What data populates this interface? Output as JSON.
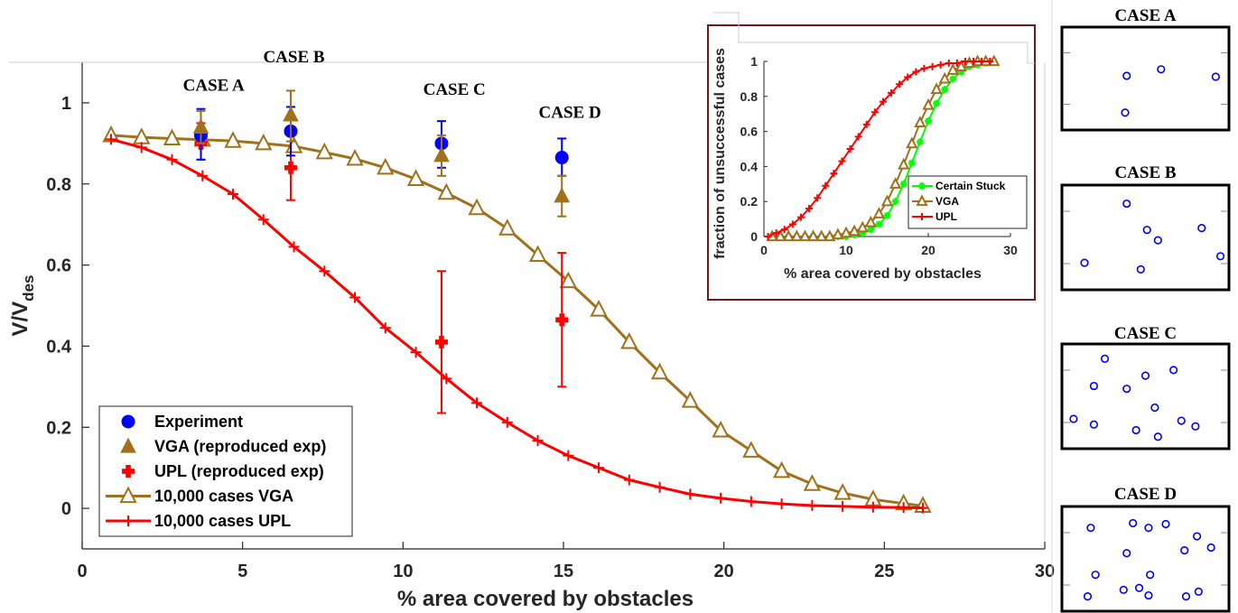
{
  "colors": {
    "experiment": "#0000ff",
    "vga": "#a0701a",
    "upl": "#ff0000",
    "certain_stuck": "#00ff00",
    "inset_frame": "#6b1b1b",
    "axis": "#262626"
  },
  "chart_data": [
    {
      "type": "line",
      "xlabel": "% area covered by obstacles",
      "ylabel": "V/V",
      "ylabel_sub": "des",
      "xlim": [
        0,
        30
      ],
      "ylim": [
        -0.1,
        1.1
      ],
      "xticks": [
        0,
        5,
        10,
        15,
        20,
        25,
        30
      ],
      "yticks": [
        0,
        0.2,
        0.4,
        0.6,
        0.8,
        1
      ],
      "xtick_labels": [
        "0",
        "5",
        "10",
        "15",
        "20",
        "25",
        "30"
      ],
      "ytick_labels": [
        "0",
        "0.2",
        "0.4",
        "0.6",
        "0.8",
        "1"
      ],
      "legend_position": "bottom-left",
      "x": [
        0.9,
        1.85,
        2.8,
        3.75,
        4.7,
        5.65,
        6.6,
        7.55,
        8.5,
        9.45,
        10.4,
        11.35,
        12.3,
        13.25,
        14.2,
        15.15,
        16.1,
        17.05,
        18.0,
        18.95,
        19.9,
        20.85,
        21.8,
        22.75,
        23.7,
        24.65,
        25.6,
        26.2
      ],
      "series": [
        {
          "name": "10,000 cases VGA",
          "key": "vga_line",
          "values": [
            0.92,
            0.915,
            0.912,
            0.909,
            0.906,
            0.9,
            0.893,
            0.878,
            0.862,
            0.84,
            0.812,
            0.778,
            0.74,
            0.69,
            0.625,
            0.56,
            0.49,
            0.41,
            0.335,
            0.265,
            0.192,
            0.142,
            0.092,
            0.06,
            0.038,
            0.022,
            0.012,
            0.006
          ]
        },
        {
          "name": "10,000 cases UPL",
          "key": "upl_line",
          "values": [
            0.91,
            0.89,
            0.86,
            0.82,
            0.775,
            0.712,
            0.645,
            0.585,
            0.52,
            0.445,
            0.385,
            0.32,
            0.26,
            0.212,
            0.167,
            0.13,
            0.1,
            0.07,
            0.052,
            0.035,
            0.025,
            0.017,
            0.011,
            0.007,
            0.005,
            0.003,
            0.002,
            0.001
          ]
        }
      ],
      "points": [
        {
          "name": "Experiment",
          "key": "experiment",
          "x": [
            3.7,
            6.5,
            11.2,
            14.95
          ],
          "y": [
            0.92,
            0.93,
            0.9,
            0.865
          ],
          "err_low": [
            0.86,
            0.87,
            0.84,
            0.82
          ],
          "err_high": [
            0.985,
            0.99,
            0.955,
            0.912
          ]
        },
        {
          "name": "VGA (reproduced exp)",
          "key": "vga_exp",
          "x": [
            3.7,
            6.5,
            11.2,
            14.95
          ],
          "y": [
            0.94,
            0.97,
            0.87,
            0.77
          ],
          "err_low": [
            0.9,
            0.905,
            0.82,
            0.72
          ],
          "err_high": [
            0.98,
            1.03,
            0.92,
            0.82
          ]
        },
        {
          "name": "UPL (reproduced exp)",
          "key": "upl_exp",
          "x": [
            3.7,
            6.5,
            11.2,
            14.95
          ],
          "y": [
            0.9,
            0.84,
            0.41,
            0.465
          ],
          "err_low": [
            0.86,
            0.76,
            0.235,
            0.3
          ],
          "err_high": [
            0.95,
            0.92,
            0.585,
            0.63
          ]
        }
      ],
      "case_labels": [
        {
          "text": "CASE A",
          "x": 4.1,
          "y": 1.03
        },
        {
          "text": "CASE B",
          "x": 6.6,
          "y": 1.1
        },
        {
          "text": "CASE C",
          "x": 11.6,
          "y": 1.02
        },
        {
          "text": "CASE D",
          "x": 15.2,
          "y": 0.963
        }
      ]
    },
    {
      "type": "line",
      "xlabel": "% area covered by obstacles",
      "ylabel": "fraction of unsuccessful cases",
      "xlim": [
        0,
        30
      ],
      "ylim": [
        0,
        1
      ],
      "xticks": [
        0,
        10,
        20,
        30
      ],
      "yticks": [
        0,
        0.2,
        0.4,
        0.6,
        0.8,
        1
      ],
      "xtick_labels": [
        "0",
        "10",
        "20",
        "30"
      ],
      "ytick_labels": [
        "0",
        "0.2",
        "0.4",
        "0.6",
        "0.8",
        "1"
      ],
      "legend_position": "bottom-right",
      "series": [
        {
          "name": "Certain Stuck",
          "key": "certain",
          "x": [
            1,
            2,
            3,
            4,
            5,
            6,
            7,
            8,
            9,
            10,
            11,
            12,
            13,
            14,
            15,
            16,
            17,
            18,
            19,
            20,
            21,
            22,
            23,
            24,
            25,
            26,
            27,
            28
          ],
          "values": [
            0,
            0,
            0,
            0,
            0,
            0,
            0,
            0,
            0,
            0,
            0.01,
            0.02,
            0.04,
            0.07,
            0.12,
            0.2,
            0.3,
            0.42,
            0.54,
            0.66,
            0.76,
            0.84,
            0.9,
            0.94,
            0.97,
            0.98,
            0.99,
            1
          ]
        },
        {
          "name": "VGA",
          "key": "vga",
          "x": [
            1,
            2,
            3,
            4,
            5,
            6,
            7,
            8,
            9,
            10,
            11,
            12,
            13,
            14,
            15,
            16,
            17,
            18,
            19,
            20,
            21,
            22,
            23,
            24,
            25,
            26,
            27,
            28
          ],
          "values": [
            0,
            0,
            0,
            0,
            0,
            0,
            0,
            0,
            0.01,
            0.02,
            0.03,
            0.05,
            0.08,
            0.13,
            0.2,
            0.3,
            0.41,
            0.53,
            0.65,
            0.75,
            0.84,
            0.9,
            0.95,
            0.97,
            0.99,
            1,
            1,
            1
          ]
        },
        {
          "name": "UPL",
          "key": "upl",
          "x": [
            0.5,
            1.5,
            2.5,
            3.5,
            4.5,
            5.5,
            6.5,
            7.5,
            8.5,
            9.5,
            10.5,
            11.5,
            12.5,
            13.5,
            14.5,
            15.5,
            16.5,
            17.5,
            18.5,
            19.5,
            20.5,
            21.5,
            22.5,
            23.5,
            24.5,
            25.5,
            26.5,
            27.5
          ],
          "values": [
            0,
            0.02,
            0.04,
            0.07,
            0.11,
            0.16,
            0.22,
            0.29,
            0.36,
            0.43,
            0.5,
            0.57,
            0.64,
            0.71,
            0.77,
            0.82,
            0.87,
            0.91,
            0.94,
            0.96,
            0.97,
            0.98,
            0.99,
            0.99,
            1,
            1,
            1,
            1
          ]
        }
      ]
    }
  ],
  "cases": [
    {
      "title": "CASE A",
      "points": [
        [
          0.38,
          0.53
        ],
        [
          0.37,
          0.13
        ],
        [
          0.6,
          0.6
        ],
        [
          0.95,
          0.52
        ]
      ]
    },
    {
      "title": "CASE B",
      "points": [
        [
          0.38,
          0.86
        ],
        [
          0.51,
          0.58
        ],
        [
          0.58,
          0.47
        ],
        [
          0.86,
          0.6
        ],
        [
          0.98,
          0.3
        ],
        [
          0.11,
          0.23
        ],
        [
          0.47,
          0.16
        ]
      ]
    },
    {
      "title": "CASE C",
      "points": [
        [
          0.24,
          0.9
        ],
        [
          0.5,
          0.72
        ],
        [
          0.68,
          0.78
        ],
        [
          0.17,
          0.61
        ],
        [
          0.38,
          0.58
        ],
        [
          0.56,
          0.38
        ],
        [
          0.04,
          0.26
        ],
        [
          0.17,
          0.2
        ],
        [
          0.44,
          0.14
        ],
        [
          0.73,
          0.24
        ],
        [
          0.82,
          0.18
        ],
        [
          0.58,
          0.07
        ]
      ]
    },
    {
      "title": "CASE D",
      "points": [
        [
          0.15,
          0.83
        ],
        [
          0.42,
          0.88
        ],
        [
          0.52,
          0.83
        ],
        [
          0.63,
          0.87
        ],
        [
          0.83,
          0.74
        ],
        [
          0.92,
          0.62
        ],
        [
          0.75,
          0.59
        ],
        [
          0.38,
          0.56
        ],
        [
          0.18,
          0.33
        ],
        [
          0.53,
          0.33
        ],
        [
          0.36,
          0.17
        ],
        [
          0.46,
          0.19
        ],
        [
          0.52,
          0.11
        ],
        [
          0.76,
          0.1
        ],
        [
          0.84,
          0.15
        ],
        [
          0.13,
          0.1
        ]
      ]
    }
  ],
  "legend_main": [
    {
      "key": "experiment",
      "label": "Experiment"
    },
    {
      "key": "vga_exp",
      "label": "VGA (reproduced exp)"
    },
    {
      "key": "upl_exp",
      "label": "UPL (reproduced exp)"
    },
    {
      "key": "vga_line",
      "label": "10,000 cases VGA"
    },
    {
      "key": "upl_line",
      "label": "10,000 cases UPL"
    }
  ],
  "legend_inset": [
    {
      "key": "certain",
      "label": "Certain Stuck"
    },
    {
      "key": "vga",
      "label": "VGA"
    },
    {
      "key": "upl",
      "label": "UPL"
    }
  ]
}
